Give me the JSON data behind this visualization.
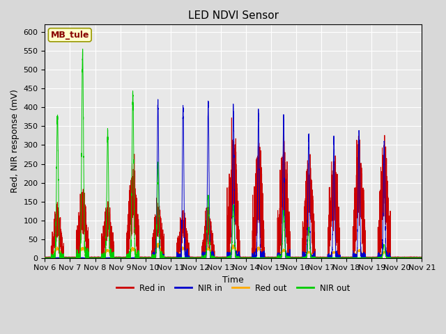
{
  "title": "LED NDVI Sensor",
  "xlabel": "Time",
  "ylabel": "Red, NIR response (mV)",
  "annotation": "MB_tule",
  "ylim": [
    0,
    620
  ],
  "xlim": [
    0,
    15
  ],
  "fig_facecolor": "#d8d8d8",
  "ax_facecolor": "#e8e8e8",
  "grid_color": "#ffffff",
  "series": {
    "red_in": {
      "color": "#cc0000",
      "label": "Red in"
    },
    "nir_in": {
      "color": "#0000cc",
      "label": "NIR in"
    },
    "red_out": {
      "color": "#ffaa00",
      "label": "Red out"
    },
    "nir_out": {
      "color": "#00cc00",
      "label": "NIR out"
    }
  },
  "xtick_labels": [
    "Nov 6",
    "Nov 7",
    "Nov 8",
    "Nov 9",
    "Nov 10",
    "Nov 11",
    "Nov 12",
    "Nov 13",
    "Nov 14",
    "Nov 15",
    "Nov 16",
    "Nov 17",
    "Nov 18",
    "Nov 19",
    "Nov 20",
    "Nov 21"
  ],
  "xtick_positions": [
    0,
    1,
    2,
    3,
    4,
    5,
    6,
    7,
    8,
    9,
    10,
    11,
    12,
    13,
    14,
    15
  ],
  "ytick_positions": [
    0,
    50,
    100,
    150,
    200,
    250,
    300,
    350,
    400,
    450,
    500,
    550,
    600
  ]
}
